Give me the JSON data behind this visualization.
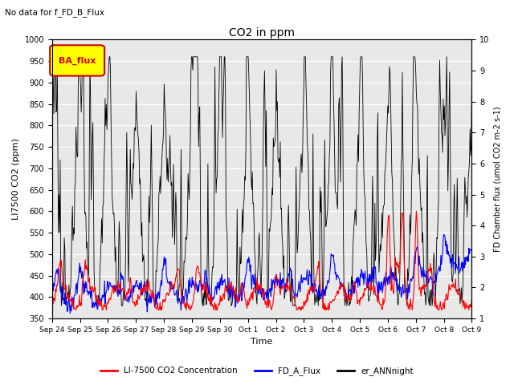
{
  "title": "CO2 in ppm",
  "suptitle": "No data for f_FD_B_Flux",
  "ylabel_left": "LI7500 CO2 (ppm)",
  "ylabel_right": "FD Chamber flux (umol CO2 m-2 s-1)",
  "xlabel": "Time",
  "ylim_left": [
    350,
    1000
  ],
  "ylim_right": [
    1.0,
    10.0
  ],
  "yticks_left": [
    350,
    400,
    450,
    500,
    550,
    600,
    650,
    700,
    750,
    800,
    850,
    900,
    950,
    1000
  ],
  "yticks_right": [
    1.0,
    2.0,
    3.0,
    4.0,
    5.0,
    6.0,
    7.0,
    8.0,
    9.0,
    10.0
  ],
  "xtick_labels": [
    "Sep 24",
    "Sep 25",
    "Sep 26",
    "Sep 27",
    "Sep 28",
    "Sep 29",
    "Sep 30",
    "Oct 1",
    "Oct 2",
    "Oct 3",
    "Oct 4",
    "Oct 5",
    "Oct 6",
    "Oct 7",
    "Oct 8",
    "Oct 9"
  ],
  "line_colors": [
    "red",
    "blue",
    "black"
  ],
  "line_labels": [
    "LI-7500 CO2 Concentration",
    "FD_A_Flux",
    "er_ANNnight"
  ],
  "legend_box": {
    "label": "BA_flux",
    "color": "yellow",
    "edgecolor": "#cc0000"
  },
  "bg_color": "#e8e8e8",
  "grid_color": "white",
  "figsize": [
    6.4,
    4.8
  ],
  "dpi": 100
}
